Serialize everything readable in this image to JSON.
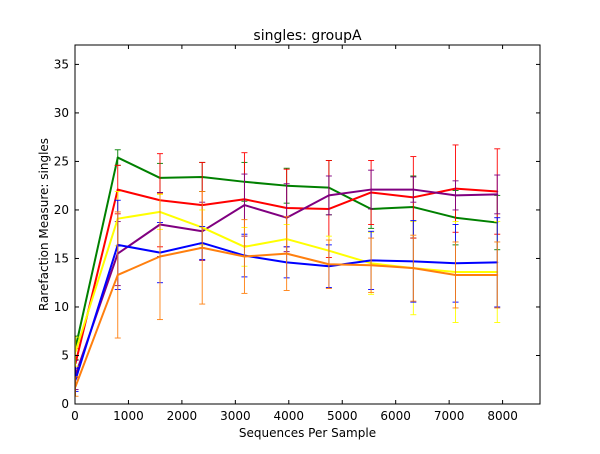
{
  "chart_data": {
    "type": "line",
    "title": "singles: groupA",
    "xlabel": "Sequences Per Sample",
    "ylabel": "Rarefaction Measure: singles",
    "xlim": [
      0,
      8700
    ],
    "ylim": [
      0,
      37
    ],
    "xticks": [
      0,
      1000,
      2000,
      3000,
      4000,
      5000,
      6000,
      7000,
      8000
    ],
    "yticks": [
      0,
      5,
      10,
      15,
      20,
      25,
      30,
      35
    ],
    "grid": false,
    "legend": "none",
    "x": [
      10,
      800,
      1590,
      2380,
      3170,
      3960,
      4750,
      5540,
      6330,
      7120,
      7900
    ],
    "series": [
      {
        "color": "#008000",
        "values": [
          5.8,
          25.4,
          23.3,
          23.4,
          22.9,
          22.5,
          22.3,
          20.1,
          20.3,
          19.2,
          18.7
        ],
        "err": [
          1.2,
          0.8,
          1.5,
          1.5,
          2.0,
          1.8,
          2.8,
          2.0,
          3.2,
          2.8,
          2.8
        ]
      },
      {
        "color": "#ff0000",
        "values": [
          4.2,
          22.1,
          21.0,
          20.5,
          21.1,
          20.2,
          20.1,
          21.8,
          21.3,
          22.2,
          21.9
        ],
        "err": [
          1.5,
          2.5,
          4.8,
          4.4,
          4.8,
          4.0,
          5.0,
          3.3,
          4.2,
          4.5,
          4.4
        ]
      },
      {
        "color": "#800080",
        "values": [
          3.0,
          15.5,
          18.5,
          17.8,
          20.5,
          19.2,
          21.5,
          22.1,
          22.1,
          21.5,
          21.6
        ],
        "err": [
          1.5,
          3.3,
          3.3,
          3.0,
          3.2,
          3.5,
          2.0,
          2.0,
          1.3,
          1.5,
          2.0
        ]
      },
      {
        "color": "#ffff00",
        "values": [
          5.4,
          19.1,
          19.8,
          18.2,
          16.2,
          17.0,
          15.8,
          14.5,
          14.0,
          13.6,
          13.6
        ],
        "err": [
          1.5,
          2.8,
          1.8,
          1.8,
          2.0,
          1.5,
          1.5,
          3.2,
          4.8,
          5.2,
          5.2
        ]
      },
      {
        "color": "#0000ff",
        "values": [
          2.5,
          16.4,
          15.6,
          16.6,
          15.3,
          14.6,
          14.2,
          14.8,
          14.7,
          14.5,
          14.6
        ],
        "err": [
          1.2,
          4.6,
          3.1,
          1.7,
          2.2,
          1.6,
          2.2,
          3.0,
          4.2,
          4.0,
          4.6
        ]
      },
      {
        "color": "#ff7f0e",
        "values": [
          1.8,
          13.3,
          15.2,
          16.1,
          15.2,
          15.5,
          14.4,
          14.3,
          14.0,
          13.3,
          13.3
        ],
        "err": [
          1.0,
          6.5,
          6.5,
          5.8,
          3.8,
          3.8,
          2.5,
          2.8,
          3.4,
          3.4,
          3.4
        ]
      }
    ]
  }
}
